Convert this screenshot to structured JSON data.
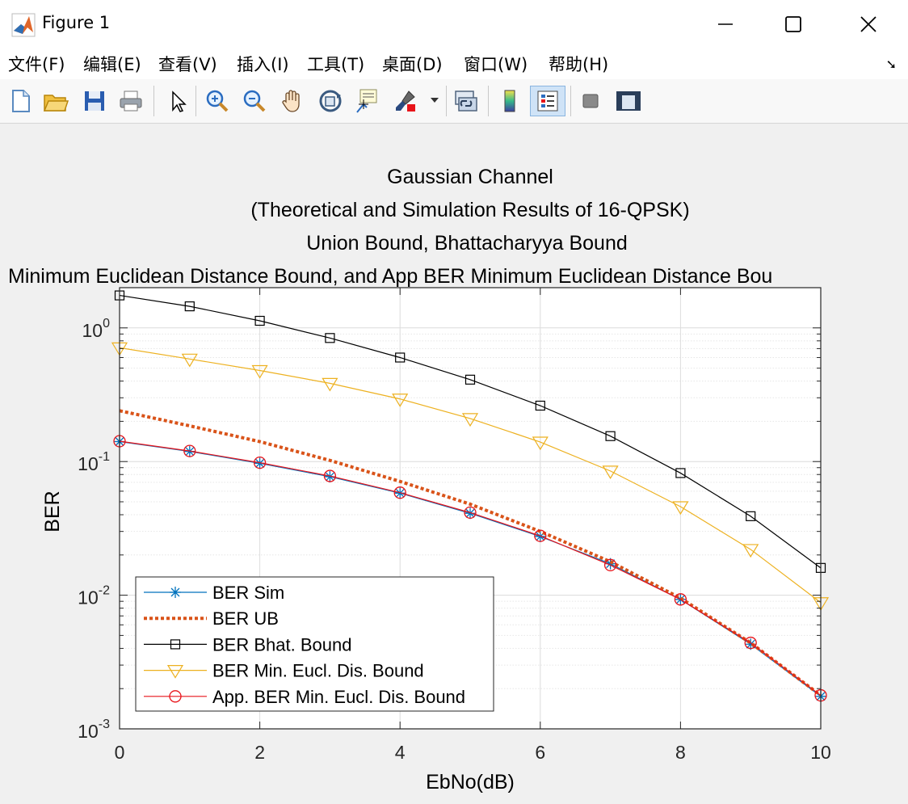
{
  "window": {
    "title": "Figure 1"
  },
  "menu": [
    "文件(F)",
    "编辑(E)",
    "查看(V)",
    "插入(I)",
    "工具(T)",
    "桌面(D)",
    "窗口(W)",
    "帮助(H)"
  ],
  "toolbar": [
    "new-figure",
    "open-file",
    "save",
    "print",
    "select-pointer",
    "zoom-in",
    "zoom-out",
    "pan",
    "rotate-3d",
    "data-cursor",
    "brush",
    "link-plot",
    "insert-colorbar",
    "insert-legend",
    "hide-plot-tools",
    "show-plot-tools"
  ],
  "chart_data": {
    "type": "line",
    "title": [
      "Gaussian Channel",
      "(Theoretical and Simulation Results of 16-QPSK)",
      "Union Bound, Bhattacharyya Bound",
      "Minimum Euclidean Distance Bound, and App BER Minimum Euclidean Distance Bou"
    ],
    "xlabel": "EbNo(dB)",
    "ylabel": "BER",
    "xlim": [
      0,
      10
    ],
    "ylim": [
      0.001,
      2
    ],
    "yscale": "log",
    "grid": true,
    "legend_position": "bottom-left",
    "x": [
      0,
      1,
      2,
      3,
      4,
      5,
      6,
      7,
      8,
      9,
      10
    ],
    "xticks": [
      "0",
      "2",
      "4",
      "6",
      "8",
      "10"
    ],
    "yticks": [
      {
        "base": "10",
        "exp": "0",
        "value": 1
      },
      {
        "base": "10",
        "exp": "-1",
        "value": 0.1
      },
      {
        "base": "10",
        "exp": "-2",
        "value": 0.01
      },
      {
        "base": "10",
        "exp": "-3",
        "value": 0.001
      }
    ],
    "series": [
      {
        "name": "BER Sim",
        "color": "#0072BD",
        "marker": "asterisk",
        "dashed": false,
        "width": 1.2,
        "values": [
          0.141,
          0.119,
          0.097,
          0.077,
          0.058,
          0.041,
          0.0275,
          0.0172,
          0.0093,
          0.0043,
          0.00175
        ]
      },
      {
        "name": "BER UB",
        "color": "#D95319",
        "marker": "none",
        "dashed": true,
        "width": 4,
        "values": [
          0.24,
          0.185,
          0.141,
          0.102,
          0.071,
          0.048,
          0.03,
          0.0178,
          0.0095,
          0.0044,
          0.00178
        ]
      },
      {
        "name": "BER Bhat. Bound",
        "color": "#000000",
        "marker": "square",
        "dashed": false,
        "width": 1.2,
        "values": [
          1.75,
          1.45,
          1.13,
          0.84,
          0.6,
          0.41,
          0.262,
          0.155,
          0.082,
          0.039,
          0.016
        ]
      },
      {
        "name": "BER Min. Eucl. Dis. Bound",
        "color": "#EDB120",
        "marker": "triangle-down",
        "dashed": false,
        "width": 1.2,
        "values": [
          0.71,
          0.585,
          0.48,
          0.385,
          0.294,
          0.21,
          0.14,
          0.085,
          0.046,
          0.022,
          0.0088
        ]
      },
      {
        "name": "App. BER Min. Eucl. Dis. Bound",
        "color": "#E8141A",
        "marker": "circle",
        "dashed": false,
        "width": 1.2,
        "values": [
          0.142,
          0.12,
          0.098,
          0.078,
          0.0585,
          0.0415,
          0.0278,
          0.0168,
          0.0093,
          0.0044,
          0.00178
        ]
      }
    ]
  }
}
